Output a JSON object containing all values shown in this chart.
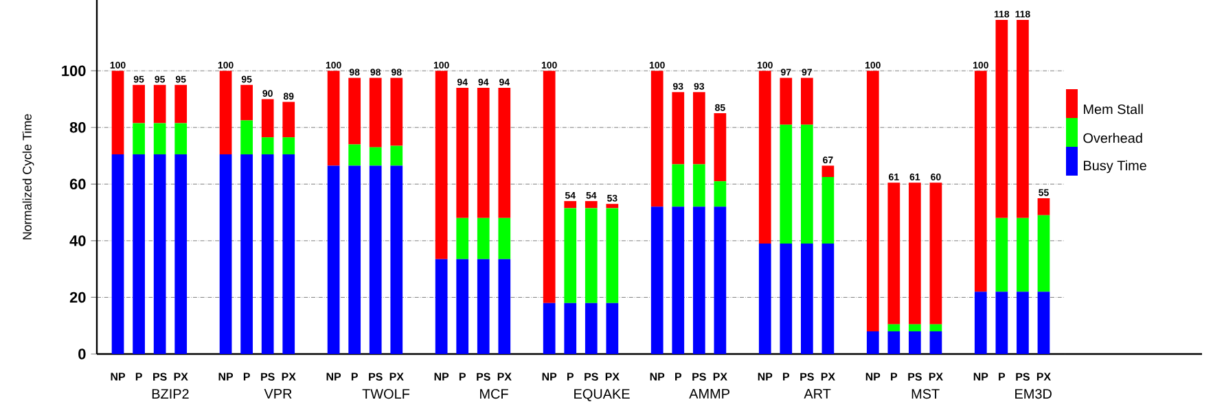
{
  "chart_data": {
    "type": "bar",
    "stacked": true,
    "ylabel": "Normalized Cycle Time",
    "categories": [
      "NP",
      "P",
      "PS",
      "PX",
      "NP",
      "P",
      "PS",
      "PX",
      "NP",
      "P",
      "PS",
      "PX",
      "NP",
      "P",
      "PS",
      "PX",
      "NP",
      "P",
      "PS",
      "PX",
      "NP",
      "P",
      "PS",
      "PX",
      "NP",
      "P",
      "PS",
      "PX",
      "NP",
      "P",
      "PS",
      "PX",
      "NP",
      "P",
      "PS",
      "PX"
    ],
    "series": [
      {
        "name": "Busy Time",
        "color": "#0000ff",
        "values": [
          70.5,
          70.5,
          70.5,
          70.5,
          70.5,
          70.5,
          70.5,
          70.5,
          66.5,
          66.5,
          66.5,
          66.5,
          33.5,
          33.5,
          33.5,
          33.5,
          18,
          18,
          18,
          18,
          52,
          52,
          52,
          52,
          39,
          39,
          39,
          39,
          8,
          8,
          8,
          8,
          22,
          22,
          22,
          22
        ]
      },
      {
        "name": "Overhead",
        "color": "#00ff00",
        "values": [
          0,
          11,
          11,
          11,
          0,
          12,
          6,
          6,
          0,
          7.5,
          6.5,
          7,
          0,
          14.5,
          14.5,
          14.5,
          0,
          33.5,
          33.5,
          33.5,
          0,
          15,
          15,
          9,
          0,
          42,
          42,
          23.5,
          0,
          2.5,
          2.5,
          2.5,
          0,
          26,
          26,
          27
        ]
      },
      {
        "name": "Mem Stall",
        "color": "#ff0000",
        "values": [
          29.5,
          13.5,
          13.5,
          13.5,
          29.5,
          12.5,
          13.5,
          12.5,
          33.5,
          23.5,
          24.5,
          24,
          66.5,
          46,
          46,
          46,
          82,
          2.5,
          2.5,
          1.5,
          48,
          25.5,
          25.5,
          24,
          61,
          16.5,
          16.5,
          4,
          92,
          50,
          50,
          50,
          78,
          70,
          70,
          6
        ]
      }
    ],
    "totals": [
      "100",
      "95",
      "95",
      "95",
      "100",
      "95",
      "90",
      "89",
      "100",
      "98",
      "98",
      "98",
      "100",
      "94",
      "94",
      "94",
      "100",
      "54",
      "54",
      "53",
      "100",
      "93",
      "93",
      "85",
      "100",
      "97",
      "97",
      "67",
      "100",
      "61",
      "61",
      "60",
      "100",
      "118",
      "118",
      "55"
    ],
    "annotations": [
      "BZIP2",
      "VPR",
      "TWOLF",
      "MCF",
      "EQUAKE",
      "AMMP",
      "ART",
      "MST",
      "EM3D"
    ],
    "ylim": [
      0,
      125
    ],
    "yticks": [
      0,
      20,
      40,
      60,
      80,
      100
    ],
    "grid": "y",
    "legend": "right"
  }
}
